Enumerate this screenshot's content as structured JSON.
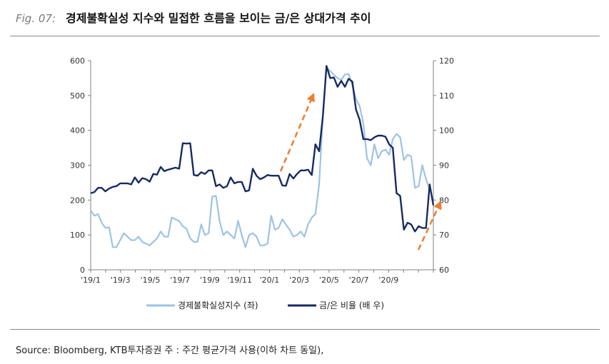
{
  "header": {
    "fig_label": "Fig. 07:",
    "title": "경제불확실성 지수와 밀접한 흐름을 보이는 금/은 상대가격 추이"
  },
  "source": "Source: Bloomberg, KTB투자증권 주 : 주간 평균가격 사용(이하 차트 동일),",
  "colors": {
    "uncertainty": "#9dc3e6",
    "gold_silver": "#172a63",
    "arrow": "#ed7d31",
    "axis": "#808080"
  },
  "chart_data": {
    "type": "line",
    "x_tick_labels": [
      "'19/1",
      "'19/3",
      "'19/5",
      "'19/7",
      "'19/9",
      "'19/11",
      "'20/1",
      "'20/3",
      "'20/5",
      "'20/7",
      "'20/9"
    ],
    "y_left": {
      "range": [
        0,
        600
      ],
      "ticks": [
        0,
        100,
        200,
        300,
        400,
        500,
        600
      ]
    },
    "y_right": {
      "range": [
        60,
        120
      ],
      "ticks": [
        60,
        70,
        80,
        90,
        100,
        110,
        120
      ]
    },
    "legend_position": "bottom",
    "grid": false,
    "series": [
      {
        "name": "경제불확실성지수 (좌)",
        "axis": "left",
        "values": [
          170,
          155,
          160,
          135,
          120,
          122,
          65,
          65,
          85,
          105,
          95,
          85,
          85,
          95,
          80,
          75,
          70,
          80,
          90,
          110,
          95,
          95,
          150,
          145,
          140,
          125,
          118,
          90,
          80,
          80,
          130,
          100,
          105,
          210,
          212,
          140,
          100,
          110,
          100,
          90,
          140,
          100,
          65,
          100,
          105,
          95,
          70,
          70,
          75,
          155,
          115,
          120,
          145,
          130,
          115,
          95,
          100,
          110,
          95,
          130,
          150,
          160,
          245,
          440,
          580,
          570,
          560,
          550,
          545,
          560,
          562,
          530,
          490,
          470,
          420,
          320,
          300,
          360,
          320,
          340,
          345,
          330,
          375,
          390,
          380,
          315,
          330,
          325,
          235,
          240,
          300,
          260,
          230
        ],
        "x_index": [
          0,
          1,
          2,
          3,
          4,
          5,
          6,
          7,
          8,
          9,
          10,
          11,
          12,
          13,
          14,
          15,
          16,
          17,
          18,
          19,
          20,
          21,
          22,
          23,
          24,
          25,
          26,
          27,
          28,
          29,
          30,
          31,
          32,
          33,
          34,
          35,
          36,
          37,
          38,
          39,
          40,
          41,
          42,
          43,
          44,
          45,
          46,
          47,
          48,
          49,
          50,
          51,
          52,
          53,
          54,
          55,
          56,
          57,
          58,
          59,
          60,
          61,
          62,
          63,
          64,
          65,
          66,
          67,
          68,
          69,
          70,
          71,
          72,
          73,
          74,
          75,
          76,
          77,
          78,
          79,
          80,
          81,
          82,
          83,
          84,
          85,
          86,
          87,
          88,
          89,
          90,
          91,
          92
        ]
      },
      {
        "name": "금/은 비율 (배 우)",
        "axis": "right",
        "values": [
          82,
          82.3,
          83.5,
          83.5,
          82.5,
          83.3,
          83.8,
          84,
          84.8,
          84.8,
          84.8,
          84.5,
          86.5,
          85,
          86.3,
          86,
          85.3,
          87.5,
          87.3,
          89.5,
          88.3,
          88.7,
          89,
          89.3,
          89,
          96.3,
          96.2,
          96.3,
          87.2,
          87,
          88,
          87.5,
          88.5,
          88.5,
          84,
          84.5,
          83.5,
          84,
          86.5,
          84.8,
          85.2,
          85.2,
          82.5,
          82.8,
          89,
          87,
          86,
          86.5,
          87.2,
          87,
          87,
          87,
          84.2,
          84.1,
          87.5,
          86.2,
          87.5,
          88.5,
          88.5,
          88.7,
          87.2,
          96,
          94,
          104,
          118.5,
          115,
          115.2,
          112.5,
          114.2,
          112.5,
          114.8,
          114,
          106,
          103,
          97.5,
          97.5,
          97.2,
          98,
          98.5,
          98.5,
          98.2,
          96,
          95,
          82,
          81.2,
          71.5,
          73.5,
          73,
          71,
          72.5,
          72,
          72,
          84.5,
          78.5
        ],
        "x_index": [
          0,
          1,
          2,
          3,
          4,
          5,
          6,
          7,
          8,
          9,
          10,
          11,
          12,
          13,
          14,
          15,
          16,
          17,
          18,
          19,
          20,
          21,
          22,
          23,
          24,
          25,
          26,
          27,
          28,
          29,
          30,
          31,
          32,
          33,
          34,
          35,
          36,
          37,
          38,
          39,
          40,
          41,
          42,
          43,
          44,
          45,
          46,
          47,
          48,
          49,
          50,
          51,
          52,
          53,
          54,
          55,
          56,
          57,
          58,
          59,
          60,
          61,
          62,
          63,
          64,
          65,
          66,
          67,
          68,
          69,
          70,
          71,
          72,
          73,
          74,
          75,
          76,
          77,
          78,
          79,
          80,
          81,
          82,
          83,
          84,
          85,
          86,
          87,
          88,
          89,
          90,
          91,
          92,
          93
        ]
      }
    ]
  }
}
